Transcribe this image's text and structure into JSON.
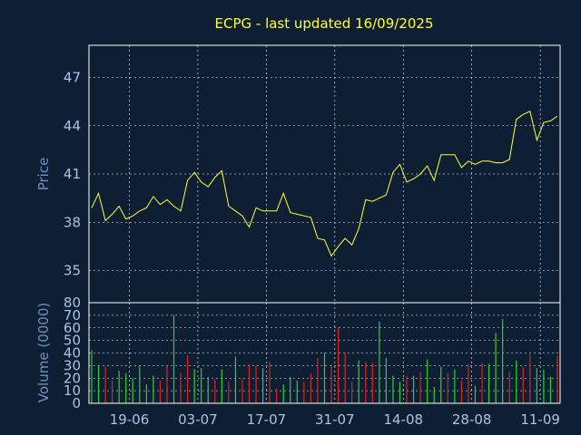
{
  "title": "ECPG - last updated 16/09/2025",
  "colors": {
    "background": "#0f1f33",
    "frame": "#ffffff",
    "grid": "#ffffff",
    "price_line": "#ffff33",
    "tick_text": "#a9c3e8",
    "axis_title": "#6f8fc1",
    "title": "#ffff33",
    "volume_up": "#33cc33",
    "volume_down": "#dd2222"
  },
  "chart_data": [
    {
      "type": "line",
      "ylabel": "Price",
      "ylim": [
        33,
        49
      ],
      "yticks": [
        "35",
        "38",
        "41",
        "44",
        "47"
      ],
      "ytick_values": [
        35,
        38,
        41,
        44,
        47
      ],
      "grid": true,
      "xlim": [
        0,
        68
      ],
      "xtick_positions": [
        5.5,
        15.5,
        25.5,
        35.5,
        45.5,
        55.5,
        65.5
      ],
      "series": [
        {
          "x": [
            0,
            1,
            2,
            3,
            4,
            5,
            6,
            7,
            8,
            9,
            10,
            11,
            12,
            13,
            14,
            15,
            16,
            17,
            18,
            19,
            20,
            21,
            22,
            23,
            24,
            25,
            26,
            27,
            28,
            29,
            30,
            31,
            32,
            33,
            34,
            35,
            36,
            37,
            38,
            39,
            40,
            41,
            42,
            43,
            44,
            45,
            46,
            47,
            48,
            49,
            50,
            51,
            52,
            53,
            54,
            55,
            56,
            57,
            58,
            59,
            60,
            61,
            62,
            63,
            64,
            65,
            66,
            67,
            68
          ],
          "values": [
            38.9,
            39.8,
            38.1,
            38.5,
            39.0,
            38.2,
            38.4,
            38.7,
            38.9,
            39.6,
            39.1,
            39.4,
            39.0,
            38.7,
            40.6,
            41.1,
            40.5,
            40.2,
            40.8,
            41.2,
            39.0,
            38.7,
            38.4,
            37.7,
            38.9,
            38.7,
            38.7,
            38.7,
            39.8,
            38.6,
            38.5,
            38.4,
            38.3,
            37.0,
            36.9,
            35.9,
            36.5,
            37.0,
            36.6,
            37.6,
            39.4,
            39.3,
            39.5,
            39.7,
            41.1,
            41.6,
            40.5,
            40.7,
            41.0,
            41.5,
            40.6,
            42.2,
            42.2,
            42.2,
            41.4,
            41.8,
            41.6,
            41.8,
            41.8,
            41.7,
            41.7,
            41.9,
            44.4,
            44.7,
            44.9,
            43.1,
            44.2,
            44.3,
            44.6
          ]
        }
      ]
    },
    {
      "type": "bar",
      "ylabel": "Volume (0000)",
      "ylim": [
        0,
        80
      ],
      "yticks": [
        "0",
        "10",
        "20",
        "30",
        "40",
        "50",
        "60",
        "70",
        "80"
      ],
      "ytick_values": [
        0,
        10,
        20,
        30,
        40,
        50,
        60,
        70,
        80
      ],
      "grid": true,
      "xtick_labels": [
        "19-06",
        "03-07",
        "17-07",
        "31-07",
        "14-08",
        "28-08",
        "11-09"
      ],
      "values": [
        42,
        30,
        29,
        18,
        26,
        24,
        20,
        30,
        15,
        22,
        18,
        30,
        70,
        24,
        38,
        27,
        28,
        21,
        19,
        27,
        17,
        37,
        19,
        31,
        30,
        28,
        33,
        12,
        15,
        21,
        18,
        17,
        24,
        36,
        40,
        31,
        60,
        40,
        17,
        34,
        33,
        32,
        65,
        36,
        22,
        17,
        22,
        22,
        25,
        35,
        13,
        29,
        24,
        27,
        18,
        31,
        14,
        32,
        31,
        56,
        67,
        25,
        34,
        29,
        39,
        28,
        27,
        21,
        38
      ],
      "up": [
        true,
        true,
        false,
        false,
        true,
        true,
        true,
        true,
        true,
        true,
        false,
        false,
        true,
        false,
        false,
        true,
        true,
        true,
        false,
        true,
        false,
        true,
        false,
        false,
        false,
        true,
        false,
        false,
        true,
        true,
        true,
        false,
        false,
        false,
        true,
        false,
        false,
        false,
        false,
        true,
        false,
        false,
        true,
        true,
        true,
        true,
        false,
        true,
        false,
        true,
        true,
        true,
        false,
        true,
        false,
        false,
        true,
        false,
        true,
        true,
        true,
        false,
        true,
        false,
        false,
        true,
        true,
        true,
        false
      ],
      "colors_by_direction": {
        "up": "#33cc33",
        "down": "#dd2222"
      }
    }
  ]
}
